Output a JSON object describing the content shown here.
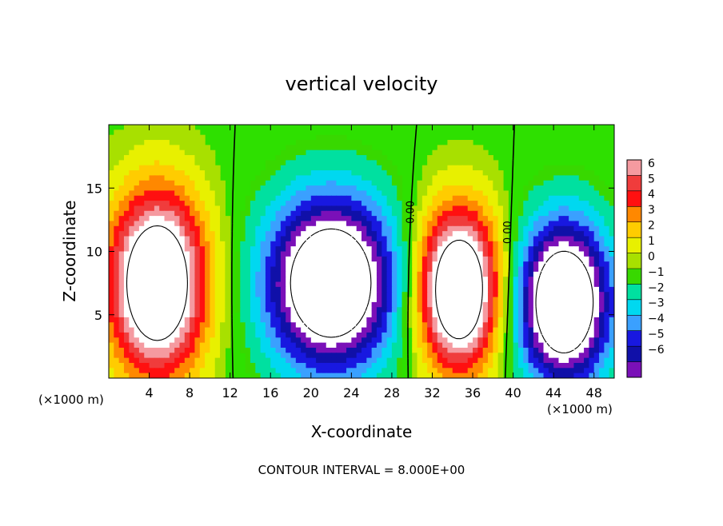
{
  "chart_data": {
    "type": "heatmap",
    "title": "vertical velocity",
    "xlabel": "X-coordinate",
    "ylabel": "Z-coordinate",
    "x_unit_left": "(×1000 m)",
    "x_unit_right": "(×1000 m)",
    "xlim": [
      0,
      50
    ],
    "ylim": [
      0,
      20
    ],
    "x_ticks": [
      4,
      8,
      12,
      16,
      20,
      24,
      28,
      32,
      36,
      40,
      44,
      48
    ],
    "y_ticks": [
      5,
      10,
      15
    ],
    "colorbar": {
      "levels": [
        6,
        5,
        4,
        3,
        2,
        1,
        0,
        -1,
        -2,
        -3,
        -4,
        -5,
        -6
      ],
      "colors": [
        "#f59aa0",
        "#f03c3c",
        "#ff1010",
        "#ff8800",
        "#ffcc00",
        "#e8f000",
        "#a8e000",
        "#38d800",
        "#00e0a0",
        "#00d8f0",
        "#3aa0ff",
        "#1818e0",
        "#1010a8",
        "#7a10b8"
      ],
      "saturated_color": "#ffffff"
    },
    "background": "#2ee000",
    "contour_labels": [
      {
        "text": "0.00",
        "x": 30.2,
        "z": 13.1
      },
      {
        "text": "0.00",
        "x": 39.8,
        "z": 11.5
      }
    ],
    "cells": [
      {
        "x": 4.8,
        "z": 7.5,
        "rx": 6.0,
        "rz": 9.0,
        "amp": 12
      },
      {
        "x": 34.6,
        "z": 7.0,
        "rx": 5.2,
        "rz": 8.0,
        "amp": 12
      },
      {
        "x": 22.0,
        "z": 7.5,
        "rx": 8.0,
        "rz": 8.5,
        "amp": -12
      },
      {
        "x": 45.0,
        "z": 6.0,
        "rx": 5.8,
        "rz": 8.0,
        "amp": -12
      }
    ],
    "footer": "CONTOUR INTERVAL = 8.000E+00"
  }
}
